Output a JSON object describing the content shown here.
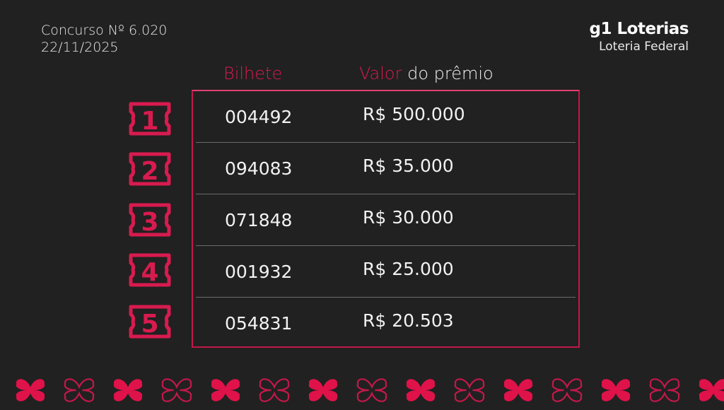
{
  "contest": {
    "number": "Concurso Nº 6.020",
    "date": "22/11/2025"
  },
  "brand": {
    "logo": "g1 Loterias",
    "subtitle": "Loteria Federal"
  },
  "headers": {
    "ticket": "Bilhete",
    "prize_accent": "Valor",
    "prize_rest": " do prêmio"
  },
  "accent_color": "#d81b4f",
  "rows": [
    {
      "position": "1",
      "ticket": "004492",
      "prize": "R$ 500.000"
    },
    {
      "position": "2",
      "ticket": "094083",
      "prize": "R$ 35.000"
    },
    {
      "position": "3",
      "ticket": "071848",
      "prize": "R$ 30.000"
    },
    {
      "position": "4",
      "ticket": "001932",
      "prize": "R$ 25.000"
    },
    {
      "position": "5",
      "ticket": "054831",
      "prize": "R$ 20.503"
    }
  ],
  "decoration": {
    "icon": "clover-icon",
    "pattern": "alternating filled/outline"
  }
}
